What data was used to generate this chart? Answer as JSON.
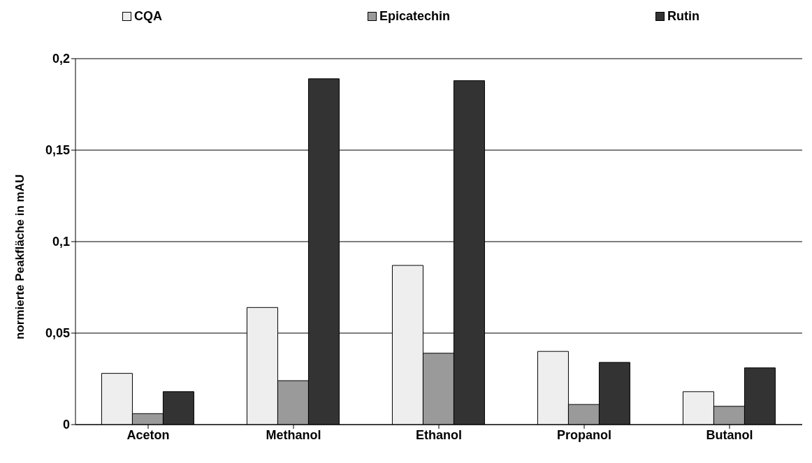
{
  "chart_data": {
    "type": "bar",
    "ylabel": "normierte Peakfläche in mAU",
    "categories": [
      "Aceton",
      "Methanol",
      "Ethanol",
      "Propanol",
      "Butanol"
    ],
    "series": [
      {
        "name": "CQA",
        "color": "#eeeeee",
        "values": [
          0.028,
          0.064,
          0.087,
          0.04,
          0.018
        ]
      },
      {
        "name": "Epicatechin",
        "color": "#9a9a9a",
        "values": [
          0.006,
          0.024,
          0.039,
          0.011,
          0.01
        ]
      },
      {
        "name": "Rutin",
        "color": "#333333",
        "values": [
          0.018,
          0.189,
          0.188,
          0.034,
          0.031
        ]
      }
    ],
    "ylim": [
      0,
      0.2
    ],
    "yticks": [
      0,
      {
        "value": 0.05,
        "label": "0,05"
      },
      {
        "value": 0.1,
        "label": "0,1"
      },
      {
        "value": 0.15,
        "label": "0,15"
      },
      {
        "value": 0.2,
        "label": "0,2"
      }
    ],
    "grid": "y",
    "legend": "top"
  }
}
